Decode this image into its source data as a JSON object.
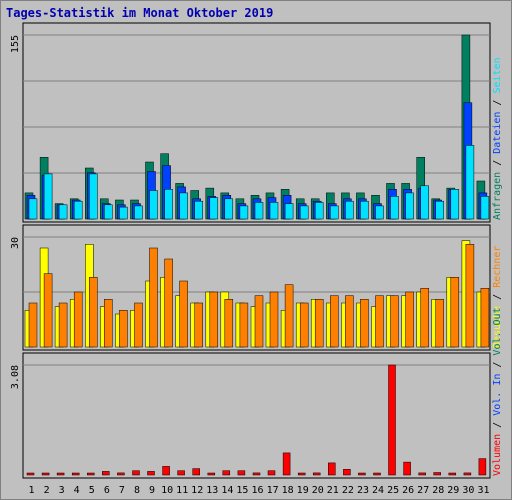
{
  "title": "Tages-Statistik im Monat Oktober 2019",
  "colors": {
    "anfragen": "#008060",
    "dateien": "#0040ff",
    "seiten": "#00e0ff",
    "besuche": "#ffff00",
    "rechner": "#ff8000",
    "volumen": "#ff0000",
    "weekend": "#008060",
    "weekday": "#000000",
    "panel_bg": "#c0c0c0"
  },
  "chart_data": [
    {
      "type": "bar",
      "panel": "top",
      "ytick": "155",
      "ylim": [
        0,
        155
      ],
      "x": [
        "1",
        "2",
        "3",
        "4",
        "5",
        "6",
        "7",
        "8",
        "9",
        "10",
        "11",
        "12",
        "13",
        "14",
        "15",
        "16",
        "17",
        "18",
        "19",
        "20",
        "21",
        "22",
        "23",
        "24",
        "25",
        "26",
        "27",
        "28",
        "29",
        "30",
        "31"
      ],
      "weekend": [
        "5",
        "6",
        "12",
        "13",
        "19",
        "20",
        "26",
        "27"
      ],
      "legend": [
        {
          "text": "Anfragen",
          "color": "#008060"
        },
        {
          "text": "Dateien",
          "color": "#0040ff"
        },
        {
          "text": "Seiten",
          "color": "#00e0ff"
        }
      ],
      "series": [
        {
          "name": "Anfragen",
          "values": [
            22,
            52,
            13,
            17,
            43,
            17,
            16,
            16,
            48,
            55,
            30,
            24,
            26,
            22,
            17,
            20,
            22,
            25,
            17,
            17,
            22,
            22,
            22,
            20,
            30,
            30,
            52,
            17,
            26,
            155,
            32
          ]
        },
        {
          "name": "Dateien",
          "values": [
            20,
            37,
            12,
            16,
            39,
            13,
            12,
            13,
            40,
            45,
            27,
            17,
            19,
            20,
            13,
            17,
            18,
            20,
            13,
            15,
            13,
            17,
            17,
            13,
            25,
            25,
            26,
            16,
            25,
            98,
            22
          ]
        },
        {
          "name": "Seiten",
          "values": [
            17,
            38,
            12,
            15,
            38,
            12,
            10,
            11,
            24,
            25,
            22,
            15,
            18,
            17,
            11,
            14,
            14,
            13,
            11,
            14,
            11,
            15,
            15,
            11,
            19,
            22,
            28,
            15,
            25,
            62,
            19
          ]
        }
      ]
    },
    {
      "type": "bar",
      "panel": "middle",
      "ytick": "30",
      "ylim": [
        0,
        30
      ],
      "x": [
        "1",
        "2",
        "3",
        "4",
        "5",
        "6",
        "7",
        "8",
        "9",
        "10",
        "11",
        "12",
        "13",
        "14",
        "15",
        "16",
        "17",
        "18",
        "19",
        "20",
        "21",
        "22",
        "23",
        "24",
        "25",
        "26",
        "27",
        "28",
        "29",
        "30",
        "31"
      ],
      "legend": [
        {
          "text": "Besuche",
          "color": "#ffff00"
        },
        {
          "text": "Rechner",
          "color": "#ff8000"
        }
      ],
      "series": [
        {
          "name": "Besuche",
          "values": [
            10,
            27,
            11,
            13,
            28,
            11,
            9,
            10,
            18,
            19,
            14,
            12,
            15,
            15,
            12,
            11,
            12,
            10,
            12,
            13,
            12,
            12,
            12,
            11,
            14,
            14,
            15,
            13,
            19,
            29,
            15
          ]
        },
        {
          "name": "Rechner",
          "values": [
            12,
            20,
            12,
            15,
            19,
            13,
            10,
            12,
            27,
            24,
            18,
            12,
            15,
            13,
            12,
            14,
            15,
            17,
            12,
            13,
            14,
            14,
            13,
            14,
            14,
            15,
            16,
            13,
            19,
            28,
            16
          ]
        }
      ]
    },
    {
      "type": "bar",
      "panel": "bottom",
      "ytick": "3.08",
      "ylim": [
        0,
        3.08
      ],
      "x": [
        "1",
        "2",
        "3",
        "4",
        "5",
        "6",
        "7",
        "8",
        "9",
        "10",
        "11",
        "12",
        "13",
        "14",
        "15",
        "16",
        "17",
        "18",
        "19",
        "20",
        "21",
        "22",
        "23",
        "24",
        "25",
        "26",
        "27",
        "28",
        "29",
        "30",
        "31"
      ],
      "legend": [
        {
          "text": "Volumen",
          "color": "#ff0000"
        },
        {
          "text": "Vol. In",
          "color": "#0040ff"
        },
        {
          "text": "Vol. Out",
          "color": "#008060"
        }
      ],
      "series": [
        {
          "name": "Volumen",
          "values": [
            0.05,
            0.04,
            0.04,
            0.04,
            0.03,
            0.1,
            0.06,
            0.12,
            0.1,
            0.24,
            0.12,
            0.18,
            0.04,
            0.12,
            0.12,
            0.06,
            0.12,
            0.62,
            0.04,
            0.06,
            0.34,
            0.16,
            0.05,
            0.05,
            3.08,
            0.36,
            0.06,
            0.07,
            0.05,
            0.06,
            0.46
          ]
        }
      ]
    }
  ]
}
